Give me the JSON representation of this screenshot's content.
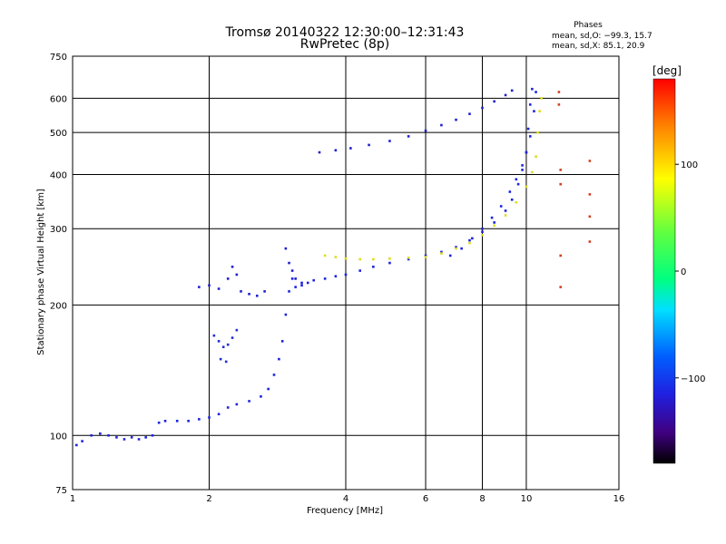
{
  "header": {
    "title_line1": "Tromsø 20140322 12:30:00–12:31:43",
    "title_line2": "RwPretec (8p)",
    "phases_title": "Phases",
    "phases_o": "mean, sd,O: −99.3, 15.7",
    "phases_x": "mean, sd,X:  85.1, 20.9"
  },
  "chart_data": {
    "type": "scatter",
    "x_scale": "log",
    "y_scale": "log",
    "xlim": [
      1,
      16
    ],
    "ylim": [
      75,
      750
    ],
    "xlabel": "Frequency [MHz]",
    "ylabel": "Stationary phase Virtual Height [km]",
    "x_ticks": [
      1,
      2,
      4,
      6,
      8,
      10,
      16
    ],
    "y_ticks": [
      75,
      100,
      200,
      300,
      400,
      500,
      600,
      750
    ],
    "x_grid": [
      2,
      4,
      6,
      8,
      10
    ],
    "y_grid": [
      100,
      200,
      300,
      400,
      500,
      600
    ],
    "grid": true,
    "colorbar": {
      "label": "[deg]",
      "range": [
        -180,
        180
      ],
      "ticks": [
        100,
        0,
        -100
      ]
    },
    "series": [
      {
        "color": "#1d24e0",
        "points": [
          [
            1.02,
            95
          ],
          [
            1.05,
            97
          ],
          [
            1.1,
            100
          ],
          [
            1.15,
            101
          ],
          [
            1.2,
            100
          ],
          [
            1.25,
            99
          ],
          [
            1.3,
            98
          ],
          [
            1.35,
            99
          ],
          [
            1.4,
            98
          ],
          [
            1.45,
            99
          ],
          [
            1.5,
            100
          ],
          [
            1.55,
            107
          ],
          [
            1.6,
            108
          ],
          [
            1.7,
            108
          ],
          [
            1.8,
            108
          ],
          [
            1.9,
            109
          ],
          [
            2.0,
            110
          ],
          [
            2.1,
            112
          ],
          [
            2.2,
            116
          ],
          [
            2.3,
            118
          ],
          [
            2.45,
            120
          ],
          [
            2.6,
            123
          ],
          [
            2.7,
            128
          ],
          [
            2.78,
            138
          ],
          [
            2.85,
            150
          ],
          [
            2.9,
            165
          ],
          [
            2.95,
            190
          ],
          [
            3.0,
            215
          ],
          [
            3.05,
            230
          ],
          [
            3.1,
            220
          ],
          [
            3.2,
            222
          ],
          [
            3.3,
            225
          ],
          [
            3.4,
            228
          ],
          [
            3.6,
            230
          ],
          [
            3.8,
            233
          ],
          [
            4.0,
            235
          ],
          [
            4.3,
            240
          ],
          [
            4.6,
            245
          ],
          [
            5.0,
            250
          ],
          [
            5.5,
            255
          ],
          [
            6.0,
            260
          ],
          [
            6.5,
            265
          ],
          [
            7.0,
            272
          ],
          [
            7.5,
            282
          ],
          [
            8.0,
            295
          ],
          [
            8.5,
            310
          ],
          [
            9.0,
            330
          ],
          [
            9.3,
            350
          ],
          [
            9.6,
            380
          ],
          [
            9.8,
            410
          ],
          [
            10.0,
            450
          ],
          [
            10.1,
            510
          ],
          [
            10.2,
            580
          ],
          [
            10.3,
            630
          ]
        ]
      },
      {
        "color": "#1d24e0",
        "points": [
          [
            6.8,
            260
          ],
          [
            7.2,
            270
          ],
          [
            7.6,
            285
          ],
          [
            8.0,
            300
          ],
          [
            8.4,
            318
          ],
          [
            8.8,
            338
          ],
          [
            9.2,
            365
          ],
          [
            9.5,
            390
          ],
          [
            9.8,
            420
          ],
          [
            10.0,
            450
          ],
          [
            10.2,
            490
          ],
          [
            10.4,
            560
          ],
          [
            10.5,
            620
          ]
        ]
      },
      {
        "color": "#2020d0",
        "points": [
          [
            3.5,
            450
          ],
          [
            3.8,
            455
          ],
          [
            4.1,
            460
          ],
          [
            4.5,
            468
          ],
          [
            5.0,
            478
          ],
          [
            5.5,
            490
          ],
          [
            6.0,
            505
          ],
          [
            6.5,
            520
          ],
          [
            7.0,
            535
          ],
          [
            7.5,
            552
          ],
          [
            8.0,
            570
          ],
          [
            8.5,
            590
          ],
          [
            9.0,
            610
          ],
          [
            9.3,
            625
          ]
        ]
      },
      {
        "color": "#dddd20",
        "points": [
          [
            3.6,
            260
          ],
          [
            3.8,
            258
          ],
          [
            4.0,
            256
          ],
          [
            4.3,
            255
          ],
          [
            4.6,
            255
          ],
          [
            5.0,
            256
          ],
          [
            5.5,
            257
          ],
          [
            6.0,
            258
          ],
          [
            6.5,
            263
          ],
          [
            7.0,
            270
          ],
          [
            7.5,
            278
          ],
          [
            8.0,
            290
          ],
          [
            8.5,
            305
          ],
          [
            9.0,
            322
          ],
          [
            9.5,
            345
          ],
          [
            10.0,
            375
          ],
          [
            10.3,
            405
          ],
          [
            10.5,
            440
          ],
          [
            10.6,
            500
          ],
          [
            10.7,
            560
          ],
          [
            10.8,
            600
          ]
        ]
      },
      {
        "color": "#2020d0",
        "points": [
          [
            1.9,
            220
          ],
          [
            2.0,
            222
          ],
          [
            2.1,
            218
          ],
          [
            2.2,
            230
          ],
          [
            2.25,
            245
          ],
          [
            2.3,
            235
          ],
          [
            2.35,
            215
          ],
          [
            2.45,
            212
          ],
          [
            2.55,
            210
          ],
          [
            2.65,
            215
          ],
          [
            2.95,
            270
          ],
          [
            3.0,
            250
          ],
          [
            3.05,
            240
          ],
          [
            3.1,
            230
          ],
          [
            3.2,
            225
          ]
        ]
      },
      {
        "color": "#2030d0",
        "points": [
          [
            2.05,
            170
          ],
          [
            2.1,
            165
          ],
          [
            2.15,
            160
          ],
          [
            2.2,
            162
          ],
          [
            2.25,
            168
          ],
          [
            2.3,
            175
          ],
          [
            2.12,
            150
          ],
          [
            2.18,
            148
          ]
        ]
      },
      {
        "color": "#d04020",
        "points": [
          [
            11.8,
            620
          ],
          [
            11.8,
            580
          ],
          [
            11.9,
            410
          ],
          [
            11.9,
            380
          ],
          [
            13.8,
            360
          ],
          [
            13.8,
            430
          ],
          [
            13.8,
            320
          ],
          [
            13.8,
            280
          ],
          [
            11.9,
            260
          ],
          [
            11.9,
            220
          ]
        ]
      }
    ]
  }
}
